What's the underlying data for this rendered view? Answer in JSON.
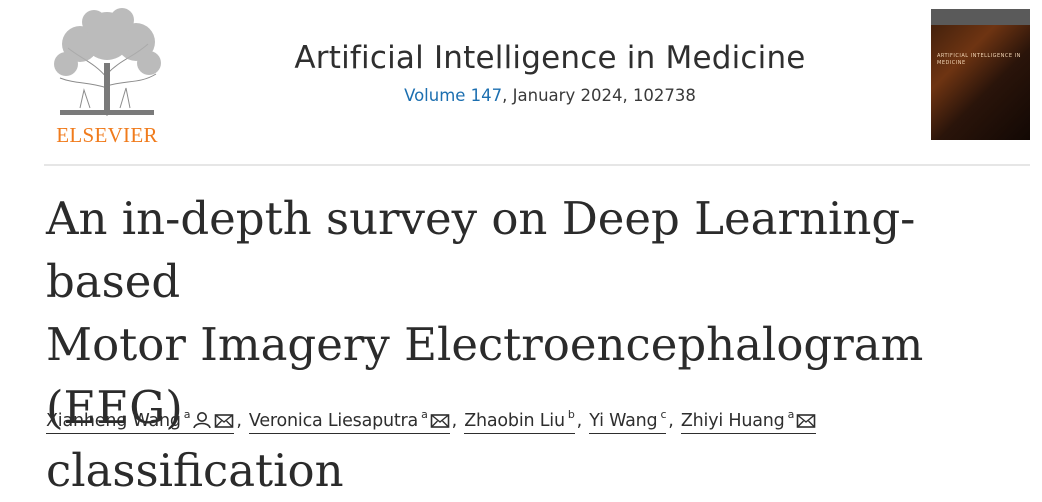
{
  "publisher": {
    "name": "ELSEVIER",
    "logo_icon": "elsevier-tree-icon"
  },
  "journal": {
    "title": "Artificial Intelligence in Medicine",
    "volume_link": "Volume 147",
    "issue_info": ", January 2024, 102738",
    "cover_text": "ARTIFICIAL INTELLIGENCE IN MEDICINE"
  },
  "article": {
    "title_lines": [
      "An in-depth survey on Deep Learning-based",
      "Motor Imagery Electroencephalogram (EEG)",
      "classification"
    ]
  },
  "authors": [
    {
      "name": "Xianheng Wang",
      "sup": "a",
      "icons": [
        "person-icon",
        "envelope-icon"
      ]
    },
    {
      "name": "Veronica Liesaputra",
      "sup": "a",
      "icons": [
        "envelope-icon"
      ]
    },
    {
      "name": "Zhaobin Liu",
      "sup": "b",
      "icons": []
    },
    {
      "name": "Yi Wang",
      "sup": "c",
      "icons": []
    },
    {
      "name": "Zhiyi Huang",
      "sup": "a",
      "icons": [
        "envelope-icon"
      ]
    }
  ],
  "colors": {
    "elsevier_orange": "#f07b1c",
    "link_blue": "#1c6fb0",
    "rule": "#e6e6e6"
  }
}
